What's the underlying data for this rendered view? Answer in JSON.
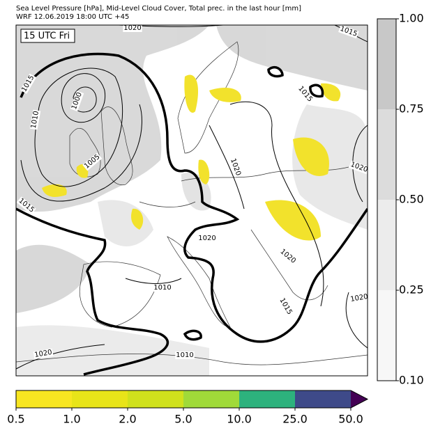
{
  "header": {
    "line1": "Sea Level Pressure [hPa], Mid-Level Cloud Cover, Total prec. in the last hour [mm]",
    "line2": "WRF 12.06.2019 18:00 UTC +45"
  },
  "map": {
    "time_label": "15 UTC Fri",
    "isobar_labels": [
      "1020",
      "1015",
      "1015",
      "1010",
      "1000",
      "1005",
      "1015",
      "1015",
      "1020",
      "1020",
      "1020",
      "1010",
      "1020",
      "1015",
      "1020",
      "1010",
      "1020"
    ]
  },
  "cloud_colorbar": {
    "labels": [
      "1.00",
      "0.75",
      "0.50",
      "0.25",
      "0.10"
    ],
    "colors": [
      "#c8c8c8",
      "#dcdcdc",
      "#ececec",
      "#f7f7f7"
    ]
  },
  "precip_colorbar": {
    "labels": [
      "0.5",
      "1.0",
      "2.0",
      "5.0",
      "10.0",
      "25.0",
      "50.0"
    ],
    "colors": [
      "#f8e621",
      "#e8e419",
      "#d0e11c",
      "#a0da39",
      "#2db27d",
      "#3e4a89"
    ],
    "over_color": "#440154"
  }
}
